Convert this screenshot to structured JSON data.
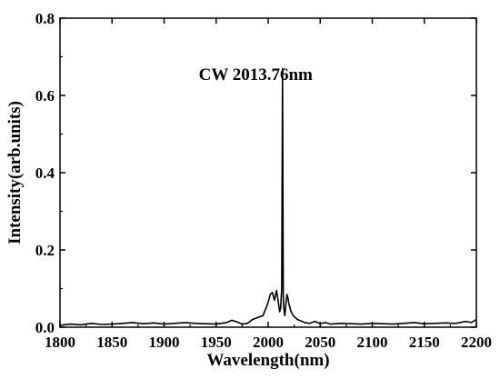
{
  "chart_data": {
    "type": "line",
    "title": "",
    "xlabel": "Wavelength(nm)",
    "ylabel": "Intensity(arb.units)",
    "xlim": [
      1800,
      2200
    ],
    "ylim": [
      0,
      0.8
    ],
    "xticks": [
      1800,
      1850,
      1900,
      1950,
      2000,
      2050,
      2100,
      2150,
      2200
    ],
    "xtick_labels": [
      "1800",
      "1850",
      "1900",
      "1950",
      "2000",
      "2050",
      "2100",
      "2150",
      "2200"
    ],
    "yticks": [
      0,
      0.2,
      0.4,
      0.6,
      0.8
    ],
    "ytick_labels": [
      "0.0",
      "0.2",
      "0.4",
      "0.6",
      "0.8"
    ],
    "grid": false,
    "legend": "none",
    "line_color": "#000000",
    "annotation": {
      "text": "CW 2013.76nm",
      "x": 1988,
      "y": 0.64
    },
    "series": [
      {
        "x": [
          1800,
          1810,
          1820,
          1830,
          1840,
          1850,
          1860,
          1870,
          1880,
          1890,
          1900,
          1910,
          1920,
          1930,
          1940,
          1950,
          1960,
          1965,
          1970,
          1975,
          1980,
          1985,
          1990,
          1995,
          1998,
          2000,
          2002,
          2004,
          2006,
          2008,
          2010,
          2011,
          2012,
          2013,
          2013.76,
          2014.5,
          2015,
          2016,
          2017,
          2018,
          2019,
          2020,
          2022,
          2024,
          2026,
          2028,
          2030,
          2035,
          2040,
          2045,
          2050,
          2055,
          2060,
          2070,
          2080,
          2090,
          2100,
          2110,
          2120,
          2130,
          2140,
          2150,
          2160,
          2170,
          2180,
          2190,
          2195,
          2200
        ],
        "y": [
          0.005,
          0.008,
          0.006,
          0.01,
          0.007,
          0.008,
          0.01,
          0.012,
          0.009,
          0.011,
          0.008,
          0.01,
          0.012,
          0.01,
          0.009,
          0.008,
          0.012,
          0.018,
          0.014,
          0.008,
          0.01,
          0.02,
          0.025,
          0.03,
          0.05,
          0.065,
          0.085,
          0.09,
          0.07,
          0.095,
          0.06,
          0.04,
          0.05,
          0.1,
          0.67,
          0.08,
          0.05,
          0.03,
          0.06,
          0.085,
          0.075,
          0.06,
          0.04,
          0.03,
          0.025,
          0.02,
          0.018,
          0.012,
          0.01,
          0.015,
          0.009,
          0.012,
          0.008,
          0.01,
          0.009,
          0.008,
          0.01,
          0.009,
          0.008,
          0.01,
          0.012,
          0.009,
          0.01,
          0.011,
          0.01,
          0.015,
          0.012,
          0.02
        ]
      }
    ]
  }
}
